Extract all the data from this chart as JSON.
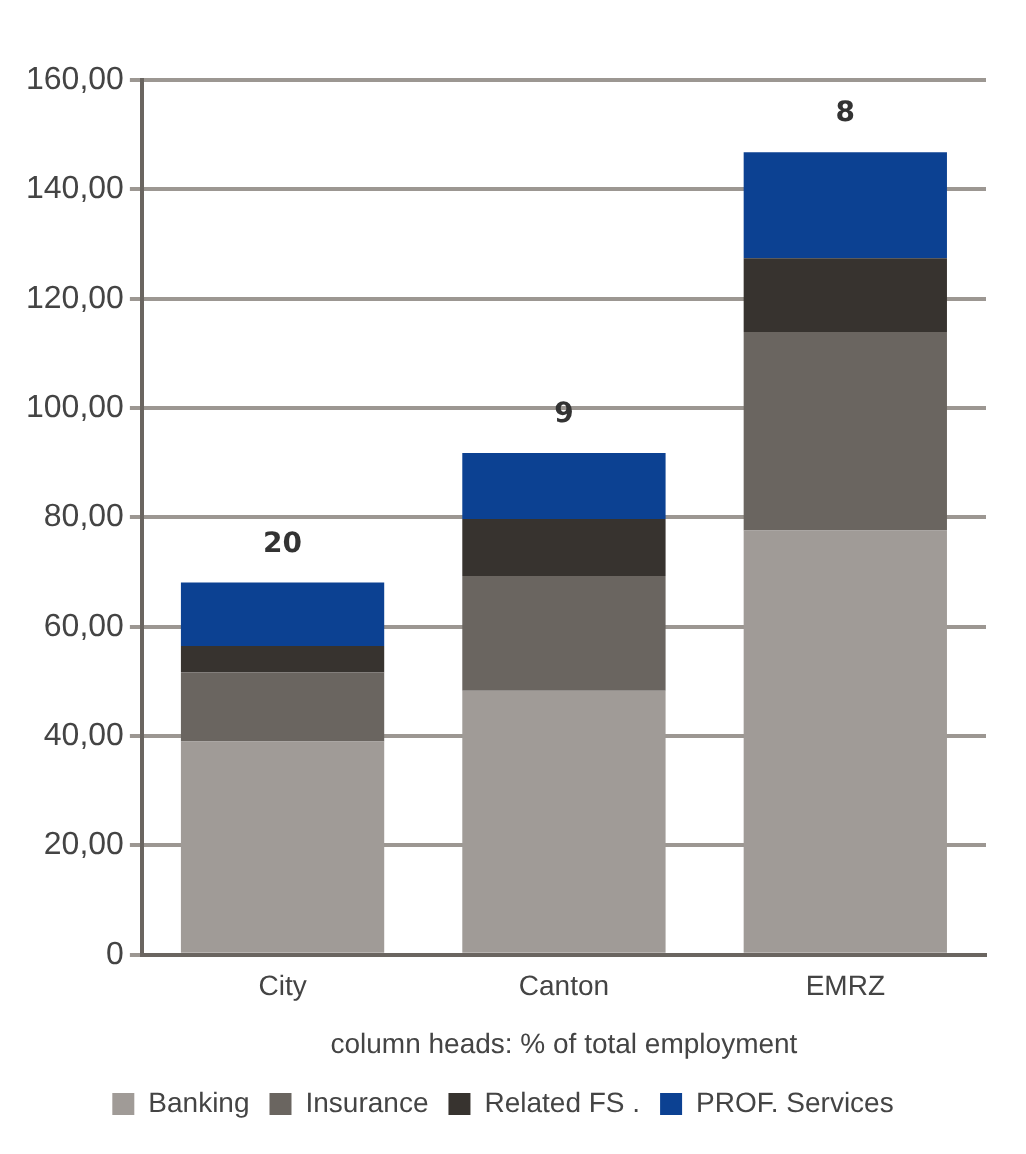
{
  "chart_data": {
    "type": "bar",
    "stacked": true,
    "categories": [
      "City",
      "Canton",
      "EMRZ"
    ],
    "series": [
      {
        "name": "Banking",
        "color": "#a09b97",
        "values": [
          39.0,
          48.3,
          77.6
        ]
      },
      {
        "name": "Insurance",
        "color": "#6a6560",
        "values": [
          12.7,
          21.0,
          36.3
        ]
      },
      {
        "name": "Related FS .",
        "color": "#37332f",
        "values": [
          4.8,
          10.4,
          13.5
        ]
      },
      {
        "name": "PROF. Services",
        "color": "#0c4192",
        "values": [
          11.6,
          12.1,
          19.4
        ]
      }
    ],
    "xlabel": "column heads: % of total employment",
    "ylim": [
      0,
      160
    ],
    "yticks": [
      0,
      {
        "value": 20,
        "label": "20,00"
      },
      {
        "value": 40,
        "label": "40,00"
      },
      {
        "value": 60,
        "label": "60,00"
      },
      {
        "value": 80,
        "label": "80,00"
      },
      {
        "value": 100,
        "label": "100,00"
      },
      {
        "value": 120,
        "label": "120,00"
      },
      {
        "value": 140,
        "label": "140,00"
      },
      {
        "value": 160,
        "label": "160,00"
      }
    ],
    "annotations": [
      {
        "text": "20",
        "x": "City",
        "y": 68.1
      },
      {
        "text": "9",
        "x": "Canton",
        "y": 91.8
      },
      {
        "text": "8",
        "x": "EMRZ",
        "y": 146.8
      }
    ],
    "grid": "y",
    "legend": "bottom"
  }
}
